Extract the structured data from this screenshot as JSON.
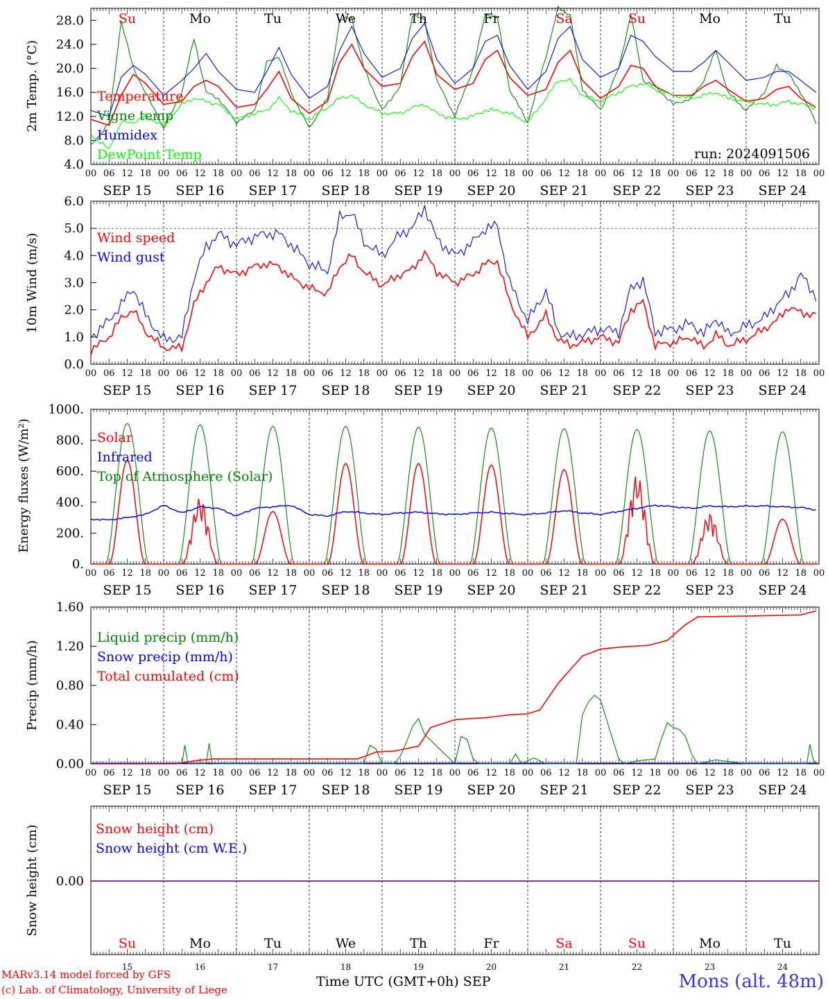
{
  "run_label": "run: 2024091506",
  "credit": {
    "line1": "MARv3.14 model forced by GFS",
    "line2": "(c) Lab. of Climatology, University of Liege"
  },
  "station": "Mons (alt. 48m)",
  "xaxis_title": "Time UTC (GMT+0h)",
  "month_label": "SEP",
  "hour_labels": [
    "00",
    "06",
    "12",
    "18"
  ],
  "date_labels": [
    "SEP 15",
    "SEP 16",
    "SEP 17",
    "SEP 18",
    "SEP 19",
    "SEP 20",
    "SEP 21",
    "SEP 22",
    "SEP 23",
    "SEP 24"
  ],
  "day_numbers": [
    "15",
    "16",
    "17",
    "18",
    "19",
    "20",
    "21",
    "22",
    "23",
    "24"
  ],
  "weekdays": [
    {
      "label": "Su",
      "color": "#ff0000"
    },
    {
      "label": "Mo",
      "color": "#000000"
    },
    {
      "label": "Tu",
      "color": "#000000"
    },
    {
      "label": "We",
      "color": "#000000"
    },
    {
      "label": "Th",
      "color": "#000000"
    },
    {
      "label": "Fr",
      "color": "#000000"
    },
    {
      "label": "Sa",
      "color": "#ff0000"
    },
    {
      "label": "Su",
      "color": "#ff0000"
    },
    {
      "label": "Mo",
      "color": "#000000"
    },
    {
      "label": "Tu",
      "color": "#000000"
    }
  ],
  "chart_data": [
    {
      "type": "line",
      "ylabel": "2m Temp. (°C)",
      "ylim": [
        4,
        30
      ],
      "yticks": [
        "4.0",
        "8.0",
        "12.0",
        "16.0",
        "20.0",
        "24.0",
        "28.0"
      ],
      "hours": [
        0,
        6,
        10,
        14,
        18,
        24,
        30,
        34,
        38,
        42,
        48,
        54,
        58,
        62,
        66,
        72,
        78,
        82,
        86,
        90,
        96,
        102,
        106,
        110,
        114,
        120,
        126,
        130,
        134,
        138,
        144,
        150,
        154,
        158,
        162,
        168,
        174,
        178,
        182,
        186,
        192,
        198,
        202,
        206,
        210,
        216,
        222,
        226,
        230,
        234,
        239
      ],
      "series": [
        {
          "name": "Temperature",
          "color": "#ff0000",
          "values": [
            11.5,
            10.5,
            15.5,
            19.0,
            17.5,
            14.0,
            14.5,
            17.0,
            18.0,
            17.0,
            13.5,
            14.0,
            16.5,
            19.5,
            15.0,
            12.5,
            14.5,
            21.0,
            24.0,
            20.0,
            17.0,
            17.5,
            22.0,
            24.5,
            19.0,
            16.5,
            17.5,
            21.5,
            23.0,
            18.5,
            15.5,
            16.5,
            21.0,
            23.0,
            18.0,
            15.0,
            17.0,
            20.5,
            20.0,
            17.0,
            15.5,
            15.5,
            17.0,
            18.0,
            16.5,
            14.5,
            15.0,
            16.5,
            17.0,
            15.0,
            13.5
          ]
        },
        {
          "name": "Vigne temp",
          "color": "#008000",
          "values": [
            7.0,
            11.0,
            28.0,
            20.0,
            16.0,
            10.0,
            16.0,
            25.0,
            16.0,
            15.0,
            11.0,
            13.0,
            21.0,
            22.0,
            16.0,
            10.0,
            15.0,
            28.0,
            28.5,
            20.0,
            13.0,
            17.0,
            29.0,
            28.0,
            18.0,
            12.0,
            20.0,
            29.0,
            28.5,
            16.5,
            11.0,
            22.0,
            30.0,
            29.0,
            16.5,
            13.0,
            20.0,
            29.0,
            18.0,
            17.0,
            14.0,
            15.0,
            18.0,
            23.0,
            16.0,
            13.0,
            16.0,
            20.5,
            19.0,
            16.0,
            11.0
          ]
        },
        {
          "name": "Humidex",
          "color": "#0000ff",
          "values": [
            13.0,
            12.0,
            18.5,
            20.5,
            19.0,
            15.5,
            18.0,
            20.0,
            22.5,
            19.5,
            16.5,
            16.0,
            19.5,
            23.5,
            19.0,
            15.0,
            17.0,
            23.0,
            27.0,
            22.5,
            18.5,
            20.0,
            25.0,
            27.5,
            21.5,
            17.5,
            20.0,
            24.5,
            25.5,
            20.5,
            16.5,
            19.5,
            25.0,
            27.0,
            21.5,
            18.5,
            20.0,
            25.5,
            24.5,
            22.0,
            19.5,
            19.5,
            21.0,
            23.0,
            21.0,
            18.0,
            18.5,
            19.5,
            19.5,
            18.0,
            16.0
          ]
        },
        {
          "name": "DewPoint Temp",
          "color": "#00ff00",
          "values": [
            9.0,
            6.5,
            11.0,
            11.0,
            12.0,
            10.5,
            14.0,
            15.0,
            14.5,
            14.0,
            11.5,
            12.5,
            13.0,
            15.0,
            13.0,
            11.5,
            13.5,
            15.0,
            15.5,
            14.0,
            12.5,
            12.5,
            13.5,
            14.0,
            12.5,
            11.5,
            12.0,
            13.0,
            13.0,
            12.5,
            11.0,
            15.0,
            18.0,
            18.0,
            15.5,
            14.5,
            16.0,
            17.0,
            17.5,
            16.5,
            15.5,
            15.0,
            15.5,
            16.0,
            15.0,
            14.5,
            14.0,
            14.0,
            14.5,
            14.0,
            13.5
          ]
        }
      ]
    },
    {
      "type": "line",
      "ylabel": "10m Wind (m/s)",
      "ylim": [
        0,
        6
      ],
      "yticks": [
        "0.0",
        "1.0",
        "2.0",
        "3.0",
        "4.0",
        "5.0",
        "6.0"
      ],
      "hours": [
        0,
        6,
        10,
        14,
        18,
        24,
        30,
        34,
        38,
        42,
        48,
        54,
        58,
        62,
        66,
        72,
        78,
        82,
        86,
        90,
        96,
        102,
        106,
        110,
        114,
        120,
        126,
        130,
        134,
        138,
        144,
        150,
        154,
        158,
        162,
        168,
        174,
        178,
        182,
        186,
        192,
        198,
        202,
        206,
        210,
        216,
        222,
        226,
        230,
        234,
        239
      ],
      "series": [
        {
          "name": "Wind speed",
          "color": "#ff0000",
          "values": [
            0.5,
            1.0,
            1.7,
            2.0,
            1.2,
            0.6,
            0.6,
            2.2,
            3.0,
            3.6,
            3.3,
            3.6,
            3.7,
            3.6,
            3.2,
            2.8,
            2.6,
            3.6,
            4.0,
            3.4,
            2.9,
            3.3,
            3.5,
            4.1,
            3.4,
            3.0,
            3.3,
            3.7,
            3.8,
            2.3,
            1.0,
            1.8,
            0.9,
            0.7,
            0.8,
            1.0,
            0.8,
            2.0,
            2.3,
            0.7,
            0.8,
            1.0,
            0.6,
            1.1,
            0.7,
            0.9,
            1.3,
            1.6,
            2.1,
            1.9,
            1.8
          ]
        },
        {
          "name": "Wind gust",
          "color": "#0000ff",
          "values": [
            1.0,
            1.6,
            2.2,
            2.8,
            1.8,
            0.9,
            1.0,
            3.2,
            4.3,
            4.8,
            4.4,
            4.7,
            4.8,
            4.8,
            4.4,
            3.7,
            3.4,
            5.4,
            5.6,
            4.5,
            4.0,
            4.8,
            5.0,
            5.8,
            4.6,
            4.0,
            4.5,
            5.0,
            5.1,
            3.0,
            1.6,
            2.7,
            1.2,
            1.0,
            1.1,
            1.3,
            1.2,
            2.8,
            3.1,
            1.2,
            1.3,
            1.5,
            1.1,
            1.7,
            1.1,
            1.4,
            1.7,
            2.2,
            2.6,
            3.3,
            2.5
          ]
        }
      ]
    },
    {
      "type": "line",
      "ylabel": "Energy fluxes (W/m²)",
      "ylim": [
        0,
        1000
      ],
      "yticks": [
        "0.",
        "200.",
        "400.",
        "600.",
        "800.",
        "1000."
      ],
      "peaks": {
        "toa_max": [
          910,
          900,
          890,
          890,
          885,
          880,
          875,
          870,
          860,
          855
        ],
        "solar_max": [
          670,
          430,
          340,
          650,
          650,
          640,
          610,
          580,
          330,
          290
        ]
      },
      "infrared_hours": [
        0,
        6,
        12,
        18,
        24,
        30,
        36,
        42,
        48,
        54,
        60,
        66,
        72,
        78,
        84,
        90,
        96,
        102,
        108,
        114,
        120,
        126,
        132,
        138,
        144,
        150,
        156,
        162,
        168,
        174,
        180,
        186,
        192,
        198,
        204,
        210,
        216,
        222,
        228,
        234,
        239
      ],
      "series": [
        {
          "name": "Solar",
          "color": "#ff0000"
        },
        {
          "name": "Infrared",
          "color": "#0000ff",
          "values": [
            290,
            285,
            300,
            320,
            380,
            330,
            370,
            360,
            310,
            360,
            370,
            380,
            320,
            310,
            340,
            330,
            320,
            330,
            335,
            325,
            320,
            330,
            335,
            325,
            320,
            330,
            345,
            330,
            320,
            340,
            360,
            380,
            370,
            360,
            375,
            370,
            375,
            375,
            370,
            365,
            350
          ]
        },
        {
          "name": "Top of Atmosphere (Solar)",
          "color": "#008000"
        }
      ]
    },
    {
      "type": "line",
      "ylabel": "Precip (mm/h)",
      "ylim": [
        0,
        1.6
      ],
      "yticks": [
        "0.00",
        "0.40",
        "0.80",
        "1.20",
        "1.60"
      ],
      "series": [
        {
          "name": "Liquid precip (mm/h)",
          "color": "#008000",
          "hours": [
            0,
            30,
            31,
            32,
            38,
            39,
            40,
            90,
            92,
            94,
            96,
            100,
            102,
            104,
            106,
            108,
            110,
            120,
            122,
            124,
            126,
            128,
            138,
            140,
            142,
            146,
            150,
            160,
            162,
            164,
            166,
            168,
            170,
            172,
            174,
            176,
            180,
            186,
            188,
            190,
            192,
            194,
            196,
            198,
            200,
            206,
            216,
            236,
            237,
            238,
            239
          ],
          "values": [
            0,
            0,
            0.19,
            0,
            0,
            0.21,
            0,
            0,
            0.19,
            0.15,
            0,
            0,
            0.08,
            0.22,
            0.38,
            0.46,
            0.3,
            0,
            0.28,
            0.25,
            0.05,
            0,
            0,
            0.1,
            0,
            0.06,
            0,
            0,
            0.5,
            0.63,
            0.7,
            0.65,
            0.45,
            0.25,
            0.05,
            0,
            0.03,
            0.05,
            0.25,
            0.42,
            0.37,
            0.35,
            0.28,
            0.1,
            0,
            0.04,
            0,
            0,
            0.2,
            0.05,
            0
          ]
        },
        {
          "name": "Snow precip (mm/h)",
          "color": "#0000ff"
        },
        {
          "name": "Total cumulated (cm)",
          "color": "#ff0000",
          "hours": [
            0,
            28,
            34,
            40,
            88,
            94,
            100,
            108,
            112,
            120,
            124,
            130,
            138,
            144,
            148,
            154,
            162,
            168,
            174,
            184,
            190,
            196,
            200,
            220,
            234,
            239
          ],
          "values": [
            0,
            0,
            0.03,
            0.05,
            0.05,
            0.12,
            0.13,
            0.18,
            0.37,
            0.45,
            0.46,
            0.47,
            0.5,
            0.51,
            0.55,
            0.82,
            1.1,
            1.17,
            1.19,
            1.21,
            1.26,
            1.42,
            1.5,
            1.51,
            1.52,
            1.56
          ]
        }
      ]
    },
    {
      "type": "line",
      "ylabel": "Snow height (cm)",
      "yticks": [
        "0.00"
      ],
      "series": [
        {
          "name": "Snow height (cm)",
          "color": "#ff0000",
          "values": [
            0,
            0
          ]
        },
        {
          "name": "Snow height (cm W.E.)",
          "color": "#0000ff",
          "values": [
            0,
            0
          ]
        }
      ]
    }
  ]
}
